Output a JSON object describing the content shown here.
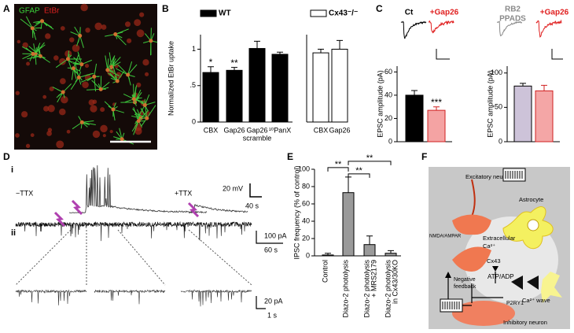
{
  "panel_labels": [
    "A",
    "B",
    "C",
    "D",
    "E",
    "F"
  ],
  "panel_a": {
    "labels": [
      "GFAP",
      "EtBr"
    ],
    "label_colors": [
      "#3ad13a",
      "#e02020"
    ]
  },
  "chart_data": [
    {
      "type": "bar",
      "legend": "WT",
      "legend_fill": "#000000",
      "ylabel": "Normalized EtBr uptake",
      "categories": [
        [
          "CBX"
        ],
        [
          "Gap26"
        ],
        [
          "Gap26",
          "scramble"
        ],
        [
          "¹⁰PanX"
        ]
      ],
      "values": [
        0.68,
        0.71,
        1.01,
        0.93
      ],
      "errors": [
        0.08,
        0.04,
        0.1,
        0.03
      ],
      "annotations": [
        "*",
        "**",
        null,
        null
      ],
      "color": "#000000",
      "ylim": [
        0,
        1.2
      ],
      "yticks": [
        0,
        {
          "value": 0.5,
          "label": ".5"
        },
        1
      ]
    },
    {
      "type": "bar",
      "legend": "Cx43⁻/⁻",
      "legend_fill": "#ffffff",
      "categories": [
        [
          "CBX"
        ],
        [
          "Gap26"
        ]
      ],
      "values": [
        0.95,
        1.0
      ],
      "errors": [
        0.05,
        0.12
      ],
      "color": "#ffffff",
      "ylim": [
        0,
        1.2
      ]
    },
    {
      "type": "bar",
      "ylabel": "EPSC amplitude (pA)",
      "trace_labels": [
        [
          "Ct"
        ],
        [
          "+Gap26"
        ]
      ],
      "trace_colors": [
        "#000000",
        "#e02020"
      ],
      "values": [
        40,
        27
      ],
      "errors": [
        4,
        3
      ],
      "annotations": [
        null,
        "***"
      ],
      "colors": [
        "#000000",
        "#f4a3a3"
      ],
      "edgecolors": [
        "#000000",
        "#d02020"
      ],
      "ylim": [
        0,
        65
      ],
      "yticks": [
        0,
        20,
        40,
        60
      ]
    },
    {
      "type": "bar",
      "ylabel": "EPSC amplitude (pA)",
      "trace_labels": [
        [
          "RB2",
          "PPADS"
        ],
        [
          "+Gap26"
        ]
      ],
      "trace_colors": [
        "#8a8a8a",
        "#e02020"
      ],
      "values": [
        -81,
        -74
      ],
      "errors": [
        4,
        8
      ],
      "colors": [
        "#cdc3d9",
        "#f4a6a6"
      ],
      "edgecolors": [
        "#000000",
        "#d02020"
      ],
      "ylim": [
        0,
        -110
      ],
      "yticks": [
        0,
        -50,
        -100
      ]
    },
    {
      "type": "bar",
      "ylabel": "IPSC frequency (% of control)",
      "categories": [
        [
          "Control"
        ],
        [
          "Diazo-2 photolysis"
        ],
        [
          "Diazo-2 photolysis",
          "+ MRS2179"
        ],
        [
          "Diazo-2 photolysis",
          "in Cx43/30KO"
        ]
      ],
      "values": [
        1,
        73,
        13,
        3
      ],
      "errors": [
        2,
        18,
        10,
        3
      ],
      "color": "#9a9a9a",
      "significance": [
        "**",
        "**",
        "**"
      ],
      "ylim": [
        0,
        100
      ],
      "yticks": [
        0,
        20,
        40,
        60,
        80,
        100
      ]
    }
  ],
  "panel_d": {
    "sublabels": [
      "i",
      "ii"
    ],
    "conditions": [
      "−TTX",
      "+TTX"
    ],
    "scalebars": [
      "20 mV",
      "40 s",
      "100 pA",
      "60 s",
      "20 pA",
      "1 s"
    ]
  },
  "diagram": {
    "excitatory": "Excitatory neuron",
    "astrocyte": "Astrocyte",
    "receptor": "NMDA/AMPAR",
    "extracellular": [
      "Extracellular",
      "Ca²⁺"
    ],
    "channel": "Cx43",
    "transmitter": "ATP/ADP",
    "feedback": [
      "Negative",
      "feedback"
    ],
    "wave": "Ca²⁺ wave",
    "p2ry1": "P2RY1",
    "inhibitory": "Inhibitory neuron"
  }
}
